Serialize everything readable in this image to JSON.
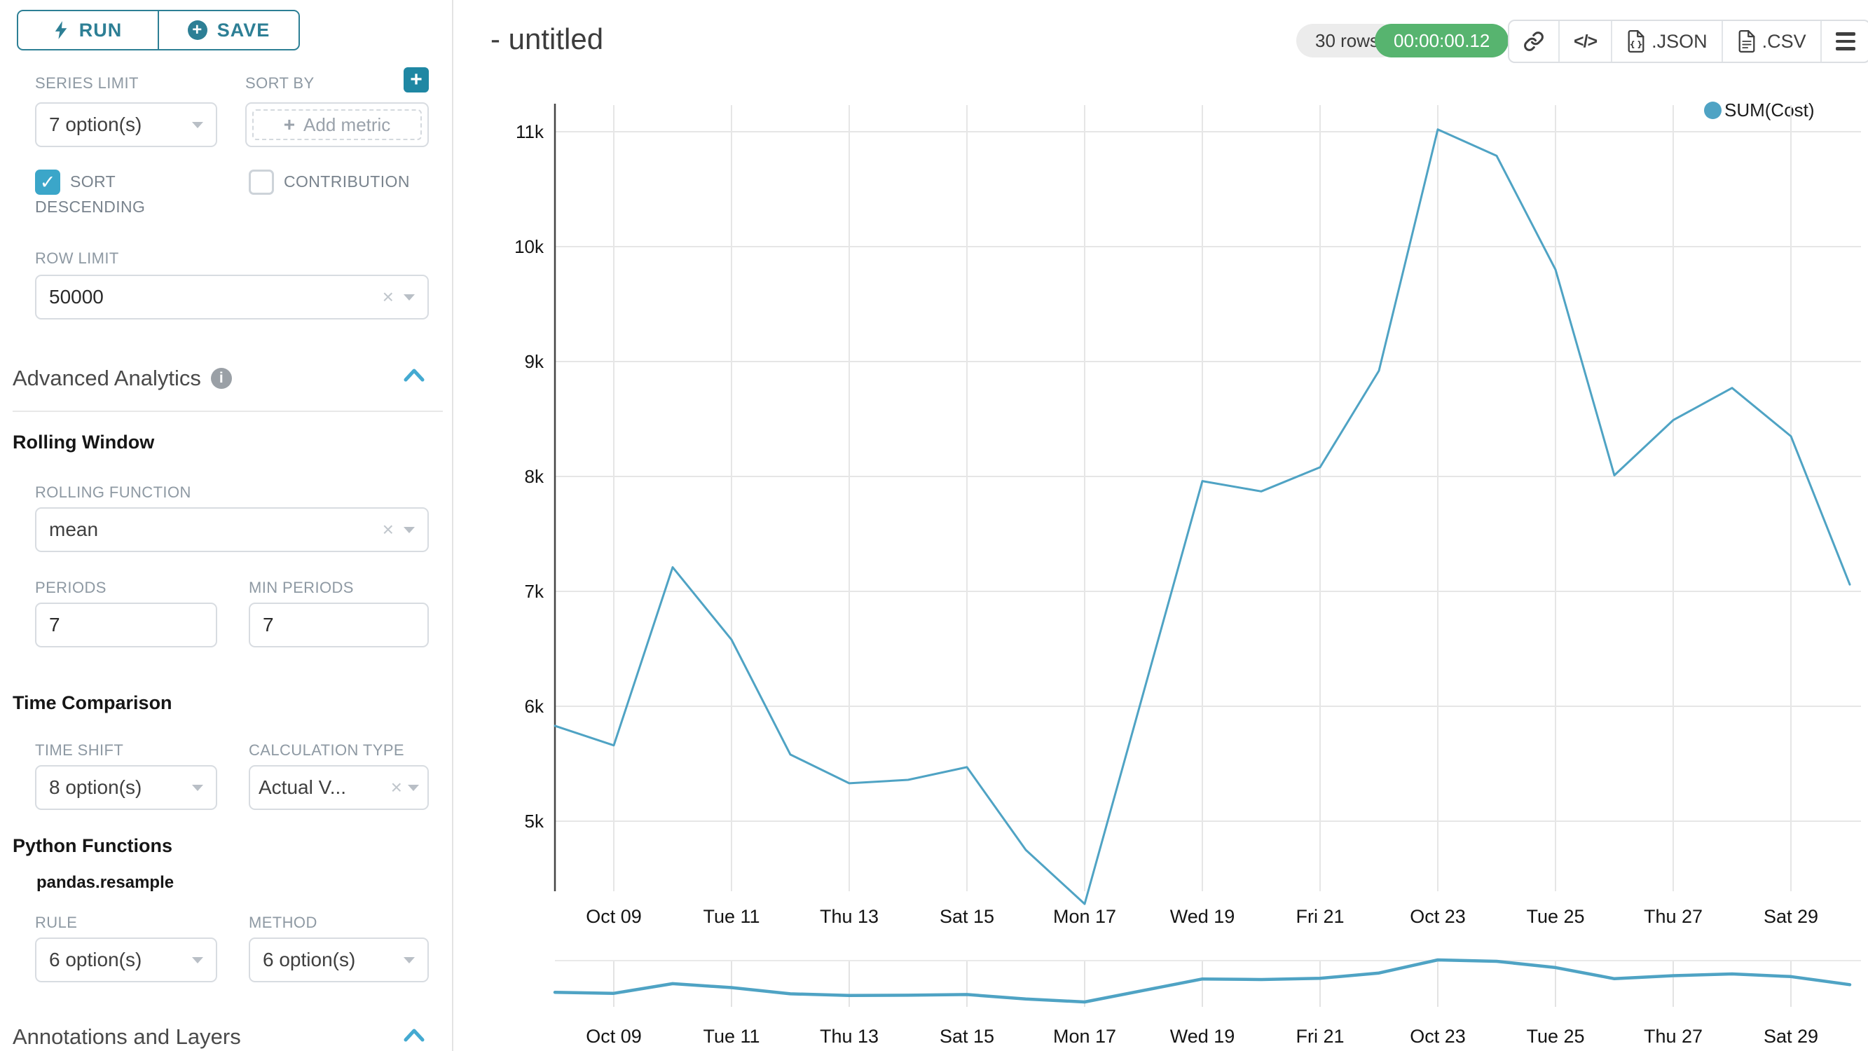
{
  "toolbar": {
    "run_label": "RUN",
    "save_label": "SAVE"
  },
  "panel": {
    "series_limit_label": "SERIES LIMIT",
    "series_limit_value": "7 option(s)",
    "sort_by_label": "SORT BY",
    "add_metric_placeholder": "Add metric",
    "sort_descending_label": "SORT DESCENDING",
    "contribution_label": "CONTRIBUTION",
    "row_limit_label": "ROW LIMIT",
    "row_limit_value": "50000",
    "advanced_title": "Advanced Analytics",
    "rolling_window_title": "Rolling Window",
    "rolling_function_label": "ROLLING FUNCTION",
    "rolling_function_value": "mean",
    "periods_label": "PERIODS",
    "periods_value": "7",
    "min_periods_label": "MIN PERIODS",
    "min_periods_value": "7",
    "time_comparison_title": "Time Comparison",
    "time_shift_label": "TIME SHIFT",
    "time_shift_value": "8 option(s)",
    "calculation_type_label": "CALCULATION TYPE",
    "calculation_type_value": "Actual V...",
    "python_functions_title": "Python Functions",
    "pandas_resample_label": "pandas.resample",
    "rule_label": "RULE",
    "rule_value": "6 option(s)",
    "method_label": "METHOD",
    "method_value": "6 option(s)",
    "annotations_title": "Annotations and Layers"
  },
  "header": {
    "title": "- untitled",
    "rows_badge": "30 rows",
    "timer_badge": "00:00:00.12",
    "json_label": ".JSON",
    "csv_label": ".CSV"
  },
  "colors": {
    "accent_teal": "#2d7f95",
    "checkbox_teal": "#3ba6c9",
    "plus_button_teal": "#1f87a3",
    "chevron_teal": "#44aad1",
    "timer_green": "#57b46f",
    "line": "#4fa3c4",
    "gridline": "#e6e6e6"
  },
  "chart_data": {
    "type": "line",
    "title": "",
    "xlabel": "",
    "ylabel": "",
    "grid": true,
    "legend_position": "top-right",
    "ylim": [
      4280,
      11020
    ],
    "has_context_minimap": true,
    "series": [
      {
        "name": "SUM(Cost)",
        "color": "#4fa3c4",
        "dates": [
          "Oct 08",
          "Oct 09",
          "Oct 10",
          "Oct 11",
          "Oct 12",
          "Oct 13",
          "Oct 14",
          "Oct 15",
          "Oct 16",
          "Oct 17",
          "Oct 18",
          "Oct 19",
          "Oct 20",
          "Oct 21",
          "Oct 22",
          "Oct 23",
          "Oct 24",
          "Oct 25",
          "Oct 26",
          "Oct 27",
          "Oct 28",
          "Oct 29",
          "Oct 30"
        ],
        "values": [
          5830,
          5660,
          7210,
          6580,
          5580,
          5330,
          5360,
          5470,
          4750,
          4280,
          6120,
          7960,
          7870,
          8080,
          8920,
          11020,
          10790,
          9800,
          8010,
          8490,
          8770,
          8350,
          7060
        ]
      }
    ],
    "yticks": [
      {
        "value": 11000,
        "label": "11k"
      },
      {
        "value": 10000,
        "label": "10k"
      },
      {
        "value": 9000,
        "label": "9k"
      },
      {
        "value": 8000,
        "label": "8k"
      },
      {
        "value": 7000,
        "label": "7k"
      },
      {
        "value": 6000,
        "label": "6k"
      },
      {
        "value": 5000,
        "label": "5k"
      }
    ],
    "xticks": [
      {
        "index": 1,
        "label": "Oct 09"
      },
      {
        "index": 3,
        "label": "Tue 11"
      },
      {
        "index": 5,
        "label": "Thu 13"
      },
      {
        "index": 7,
        "label": "Sat 15"
      },
      {
        "index": 9,
        "label": "Mon 17"
      },
      {
        "index": 11,
        "label": "Wed 19"
      },
      {
        "index": 13,
        "label": "Fri 21"
      },
      {
        "index": 15,
        "label": "Oct 23"
      },
      {
        "index": 17,
        "label": "Tue 25"
      },
      {
        "index": 19,
        "label": "Thu 27"
      },
      {
        "index": 21,
        "label": "Sat 29"
      }
    ]
  }
}
